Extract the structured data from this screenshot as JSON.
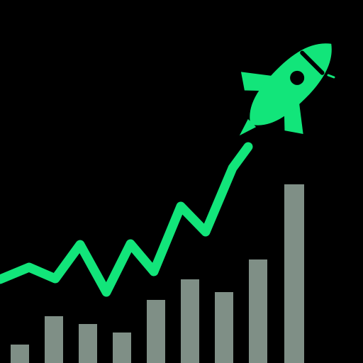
{
  "icon": {
    "name": "rocket-growth-chart-icon",
    "background_color": "#000000",
    "bar_color": "#7f8f86",
    "line_color": "#12e57a",
    "rocket_color": "#12e57a",
    "rocket_window_color": "#000000"
  }
}
